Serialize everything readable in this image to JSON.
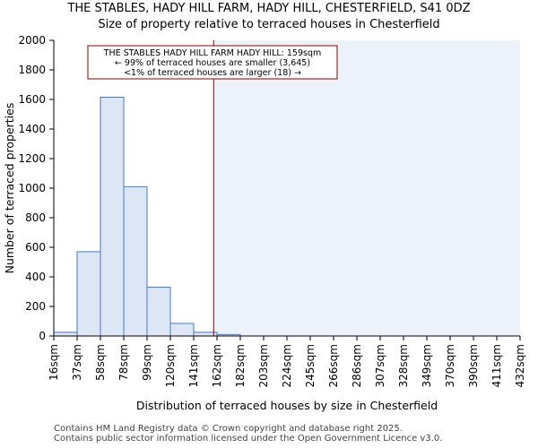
{
  "chart_data": {
    "type": "histogram",
    "title": "THE STABLES, HADY HILL FARM, HADY HILL, CHESTERFIELD, S41 0DZ",
    "subtitle": "Size of property relative to terraced houses in Chesterfield",
    "xlabel": "Distribution of terraced houses by size in Chesterfield",
    "ylabel": "Number of terraced properties",
    "ylim": [
      0,
      2000
    ],
    "yticks": [
      0,
      200,
      400,
      600,
      800,
      1000,
      1200,
      1400,
      1600,
      1800,
      2000
    ],
    "categories": [
      "16sqm",
      "37sqm",
      "58sqm",
      "78sqm",
      "99sqm",
      "120sqm",
      "141sqm",
      "162sqm",
      "182sqm",
      "203sqm",
      "224sqm",
      "245sqm",
      "266sqm",
      "286sqm",
      "307sqm",
      "328sqm",
      "349sqm",
      "370sqm",
      "390sqm",
      "411sqm",
      "432sqm"
    ],
    "values": [
      25,
      570,
      1615,
      1010,
      330,
      85,
      25,
      10,
      0,
      0,
      0,
      0,
      0,
      0,
      0,
      0,
      0,
      0,
      0,
      0
    ],
    "bar_fill": "#dce6f4",
    "bar_edge": "#4a78c2",
    "shade_fill": "#edf1fa",
    "marker": {
      "value": 159,
      "unit": "sqm",
      "color": "#8b0000"
    },
    "annotation": {
      "line1": "THE STABLES HADY HILL FARM HADY HILL: 159sqm",
      "line2": "← 99% of terraced houses are smaller (3,645)",
      "line3": "<1% of terraced houses are larger (18) →"
    }
  },
  "footer": {
    "line1": "Contains HM Land Registry data © Crown copyright and database right 2025.",
    "line2": "Contains public sector information licensed under the Open Government Licence v3.0."
  }
}
